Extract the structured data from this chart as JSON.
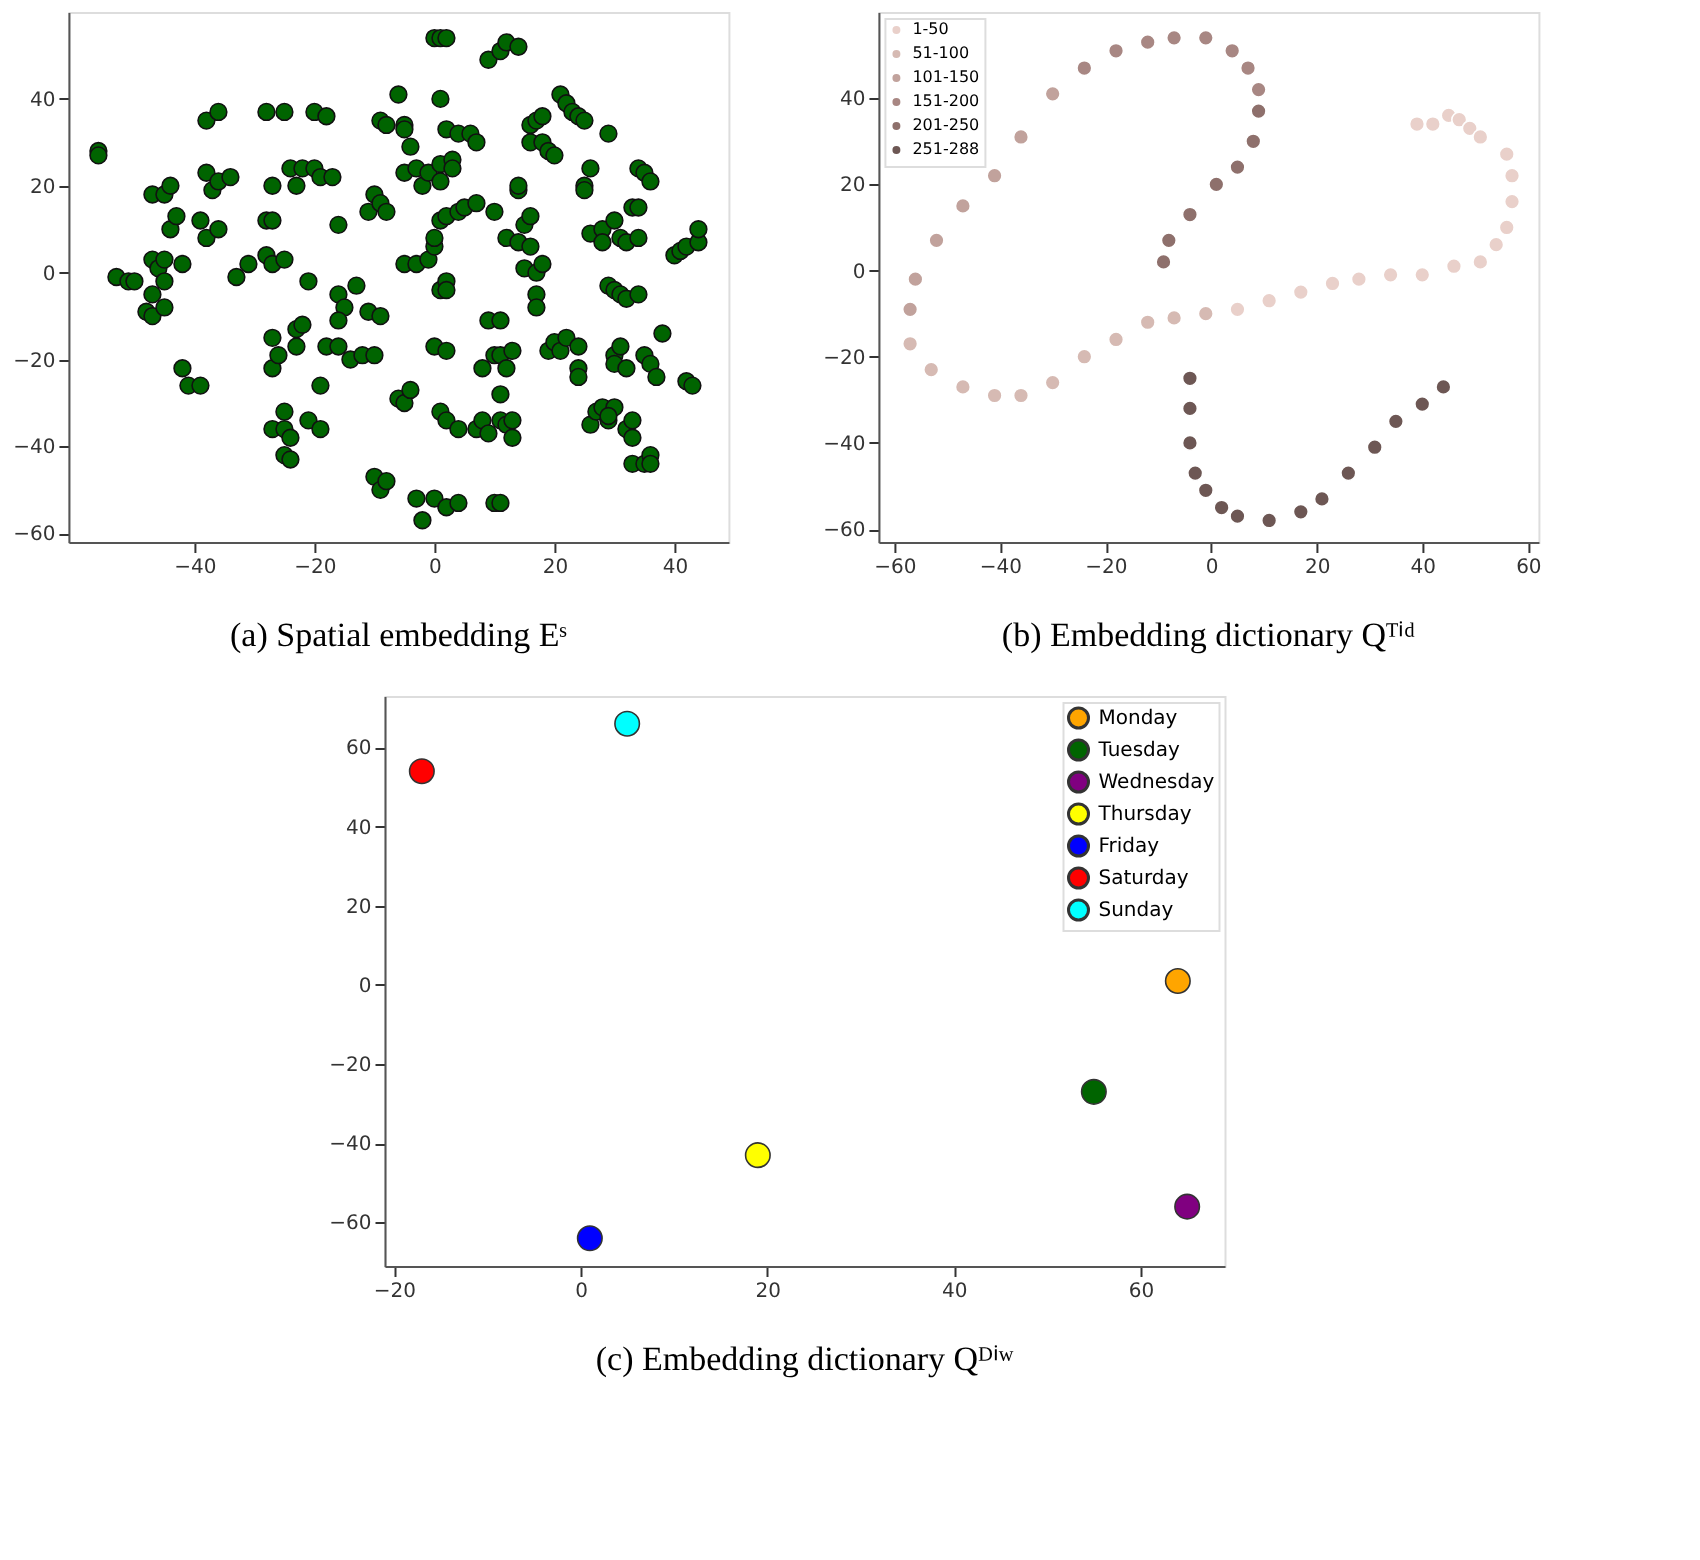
{
  "chart_data": [
    {
      "type": "scatter",
      "title": "(a) Spatial embedding Eˢ",
      "xlim": [
        -61,
        49
      ],
      "ylim": [
        -62,
        60
      ],
      "xticks": [
        -40,
        -20,
        0,
        20,
        40
      ],
      "yticks": [
        -60,
        -40,
        -20,
        0,
        20,
        40
      ],
      "grid": false,
      "legend": false,
      "marker": "circle",
      "series": [
        {
          "color": "#006400",
          "x": [
            -56,
            -56,
            -53,
            -51,
            -50,
            -48,
            -47,
            -47,
            -45,
            -44,
            -44,
            -43,
            -47,
            -46,
            -45,
            -42,
            -47,
            -45,
            -45,
            -42,
            -41,
            -39,
            -38,
            -36,
            -38,
            -37,
            -36,
            -34,
            -39,
            -38,
            -36,
            -33,
            -31,
            -28,
            -25,
            -27,
            -28,
            -27,
            -28,
            -27,
            -25,
            -24,
            -23,
            -22,
            -20,
            -20,
            -18,
            -19,
            -17,
            -27,
            -27,
            -26,
            -23,
            -22,
            -23,
            -21,
            -27,
            -25,
            -25,
            -24,
            -25,
            -24,
            -21,
            -19,
            -19,
            -18,
            -16,
            -16,
            -15,
            -16,
            -16,
            -14,
            -12,
            -10,
            -13,
            -11,
            -10,
            -9,
            -8,
            -11,
            -9,
            -10,
            -9,
            -8,
            -9,
            -8,
            -6,
            -5,
            -5,
            -4,
            -6,
            -5,
            -4,
            -5,
            -3,
            -2,
            -1,
            -5,
            -3,
            -1,
            0,
            0,
            -3,
            -2,
            1,
            1,
            0,
            1,
            2,
            1,
            1,
            2,
            1,
            2,
            2,
            0,
            2,
            1,
            2,
            4,
            0,
            2,
            4,
            2,
            4,
            6,
            7,
            3,
            3,
            4,
            5,
            7,
            7,
            8,
            9,
            11,
            9,
            11,
            12,
            14,
            10,
            8,
            9,
            11,
            12,
            10,
            11,
            10,
            11,
            12,
            13,
            11,
            13,
            13,
            12,
            14,
            16,
            14,
            14,
            15,
            15,
            16,
            17,
            18,
            17,
            17,
            16,
            17,
            18,
            16,
            18,
            19,
            20,
            19,
            20,
            21,
            22,
            21,
            22,
            23,
            24,
            25,
            24,
            24,
            24,
            25,
            26,
            25,
            26,
            28,
            28,
            30,
            29,
            26,
            27,
            28,
            29,
            30,
            29,
            29,
            30,
            31,
            32,
            34,
            30,
            30,
            31,
            32,
            31,
            32,
            34,
            33,
            34,
            34,
            35,
            36,
            32,
            33,
            33,
            33,
            35,
            36,
            37,
            35,
            36,
            36,
            38,
            40,
            41,
            42,
            44,
            44,
            42,
            43
          ],
          "values": [
            28,
            27,
            -1,
            -2,
            -2,
            -9,
            -10,
            18,
            18,
            20,
            10,
            13,
            3,
            1,
            3,
            2,
            -5,
            -2,
            -8,
            -22,
            -26,
            -26,
            35,
            37,
            23,
            19,
            21,
            22,
            12,
            8,
            10,
            -1,
            2,
            37,
            37,
            20,
            12,
            12,
            4,
            2,
            3,
            24,
            20,
            24,
            24,
            37,
            36,
            22,
            22,
            -15,
            -22,
            -19,
            -13,
            -12,
            -17,
            -2,
            -36,
            -32,
            -36,
            -38,
            -42,
            -43,
            -34,
            -36,
            -26,
            -17,
            -17,
            -5,
            -8,
            -11,
            11,
            -20,
            -19,
            -19,
            -3,
            14,
            18,
            16,
            14,
            -9,
            -10,
            -47,
            -50,
            -48,
            35,
            34,
            41,
            34,
            33,
            29,
            -29,
            -30,
            -27,
            23,
            24,
            20,
            23,
            2,
            2,
            3,
            6,
            8,
            -52,
            -57,
            25,
            21,
            54,
            54,
            54,
            40,
            12,
            13,
            -4,
            -2,
            -4,
            -17,
            -18,
            -32,
            -34,
            -36,
            -52,
            -54,
            -53,
            33,
            32,
            32,
            30,
            26,
            24,
            14,
            15,
            16,
            -36,
            -22,
            -11,
            -11,
            49,
            51,
            53,
            52,
            14,
            -34,
            -37,
            -34,
            -35,
            -53,
            -53,
            -19,
            -19,
            -22,
            -18,
            -28,
            -34,
            -38,
            8,
            7,
            6,
            19,
            20,
            1,
            11,
            13,
            0,
            2,
            -5,
            -8,
            34,
            35,
            36,
            30,
            30,
            28,
            27,
            -18,
            -16,
            -18,
            -15,
            41,
            39,
            37,
            36,
            35,
            -17,
            -22,
            -24,
            20,
            24,
            19,
            9,
            10,
            7,
            12,
            32,
            -35,
            -32,
            -31,
            -34,
            -31,
            -33,
            -3,
            -4,
            -5,
            -6,
            -5,
            -19,
            -21,
            -17,
            -22,
            8,
            7,
            8,
            15,
            15,
            24,
            23,
            21,
            -36,
            -34,
            -38,
            -44,
            -19,
            -21,
            -24,
            -44,
            -42,
            -44,
            -14,
            4,
            5,
            6,
            7,
            10,
            -25,
            -26
          ]
        }
      ]
    },
    {
      "type": "scatter",
      "title": "(b) Embedding dictionary Qᵀⁱᵈ",
      "xlim": [
        -63,
        62
      ],
      "ylim": [
        -63,
        60
      ],
      "xticks": [
        -60,
        -40,
        -20,
        0,
        20,
        40,
        60
      ],
      "yticks": [
        -60,
        -40,
        -20,
        0,
        20,
        40
      ],
      "grid": false,
      "legend": "top left",
      "marker": "circle",
      "series": [
        {
          "name": "1-50",
          "color": "#e9d0ca",
          "x": [
            39,
            42,
            45,
            47,
            49,
            51,
            56,
            57,
            57,
            56,
            54,
            51,
            46,
            40,
            34,
            28,
            23,
            17,
            11,
            5
          ],
          "values": [
            34,
            34,
            36,
            35,
            33,
            31,
            27,
            22,
            16,
            10,
            6,
            2,
            1,
            -1,
            -1,
            -2,
            -3,
            -5,
            -7,
            -9
          ]
        },
        {
          "name": "51-100",
          "color": "#d6bab3",
          "x": [
            -1,
            -7,
            -12,
            -18,
            -24,
            -30,
            -36,
            -41,
            -47,
            -53,
            -57
          ],
          "values": [
            -10,
            -11,
            -12,
            -16,
            -20,
            -26,
            -29,
            -29,
            -27,
            -23,
            -17
          ]
        },
        {
          "name": "101-150",
          "color": "#c1a29c",
          "x": [
            -57,
            -56,
            -52,
            -47,
            -41,
            -36,
            -30
          ],
          "values": [
            -9,
            -2,
            7,
            15,
            22,
            31,
            41
          ]
        },
        {
          "name": "151-200",
          "color": "#a88783",
          "x": [
            -24,
            -18,
            -12,
            -7,
            -1,
            4,
            7,
            9
          ],
          "values": [
            47,
            51,
            53,
            54,
            54,
            51,
            47,
            42
          ]
        },
        {
          "name": "201-250",
          "color": "#8e706c",
          "x": [
            9,
            8,
            5,
            1,
            -4,
            -8,
            -9
          ],
          "values": [
            37,
            30,
            24,
            20,
            13,
            7,
            2
          ]
        },
        {
          "name": "251-288",
          "color": "#6d5754",
          "x": [
            -4,
            -4,
            -4,
            -3,
            -1,
            2,
            5,
            11,
            17,
            21,
            26,
            31,
            35,
            40,
            44
          ],
          "values": [
            -25,
            -32,
            -40,
            -47,
            -51,
            -55,
            -57,
            -58,
            -56,
            -53,
            -47,
            -41,
            -35,
            -31,
            -27
          ]
        }
      ]
    },
    {
      "type": "scatter",
      "title": "(c) Embedding dictionary Qᴰⁱʷ",
      "xlim": [
        -21,
        69
      ],
      "ylim": [
        -71,
        73
      ],
      "xticks": [
        -20,
        0,
        20,
        40,
        60
      ],
      "yticks": [
        -60,
        -40,
        -20,
        0,
        20,
        40,
        60
      ],
      "grid": false,
      "legend": "top right",
      "marker": "circle",
      "series": [
        {
          "name": "Monday",
          "color": "#ffa500",
          "x": [
            64
          ],
          "values": [
            1
          ]
        },
        {
          "name": "Tuesday",
          "color": "#006400",
          "x": [
            55
          ],
          "values": [
            -27
          ]
        },
        {
          "name": "Wednesday",
          "color": "#800080",
          "x": [
            65
          ],
          "values": [
            -56
          ]
        },
        {
          "name": "Thursday",
          "color": "#ffff00",
          "x": [
            19
          ],
          "values": [
            -43
          ]
        },
        {
          "name": "Friday",
          "color": "#0000ff",
          "x": [
            1
          ],
          "values": [
            -64
          ]
        },
        {
          "name": "Saturday",
          "color": "#ff0000",
          "x": [
            -17
          ],
          "values": [
            54
          ]
        },
        {
          "name": "Sunday",
          "color": "#00ffff",
          "x": [
            5
          ],
          "values": [
            66
          ]
        }
      ]
    }
  ]
}
